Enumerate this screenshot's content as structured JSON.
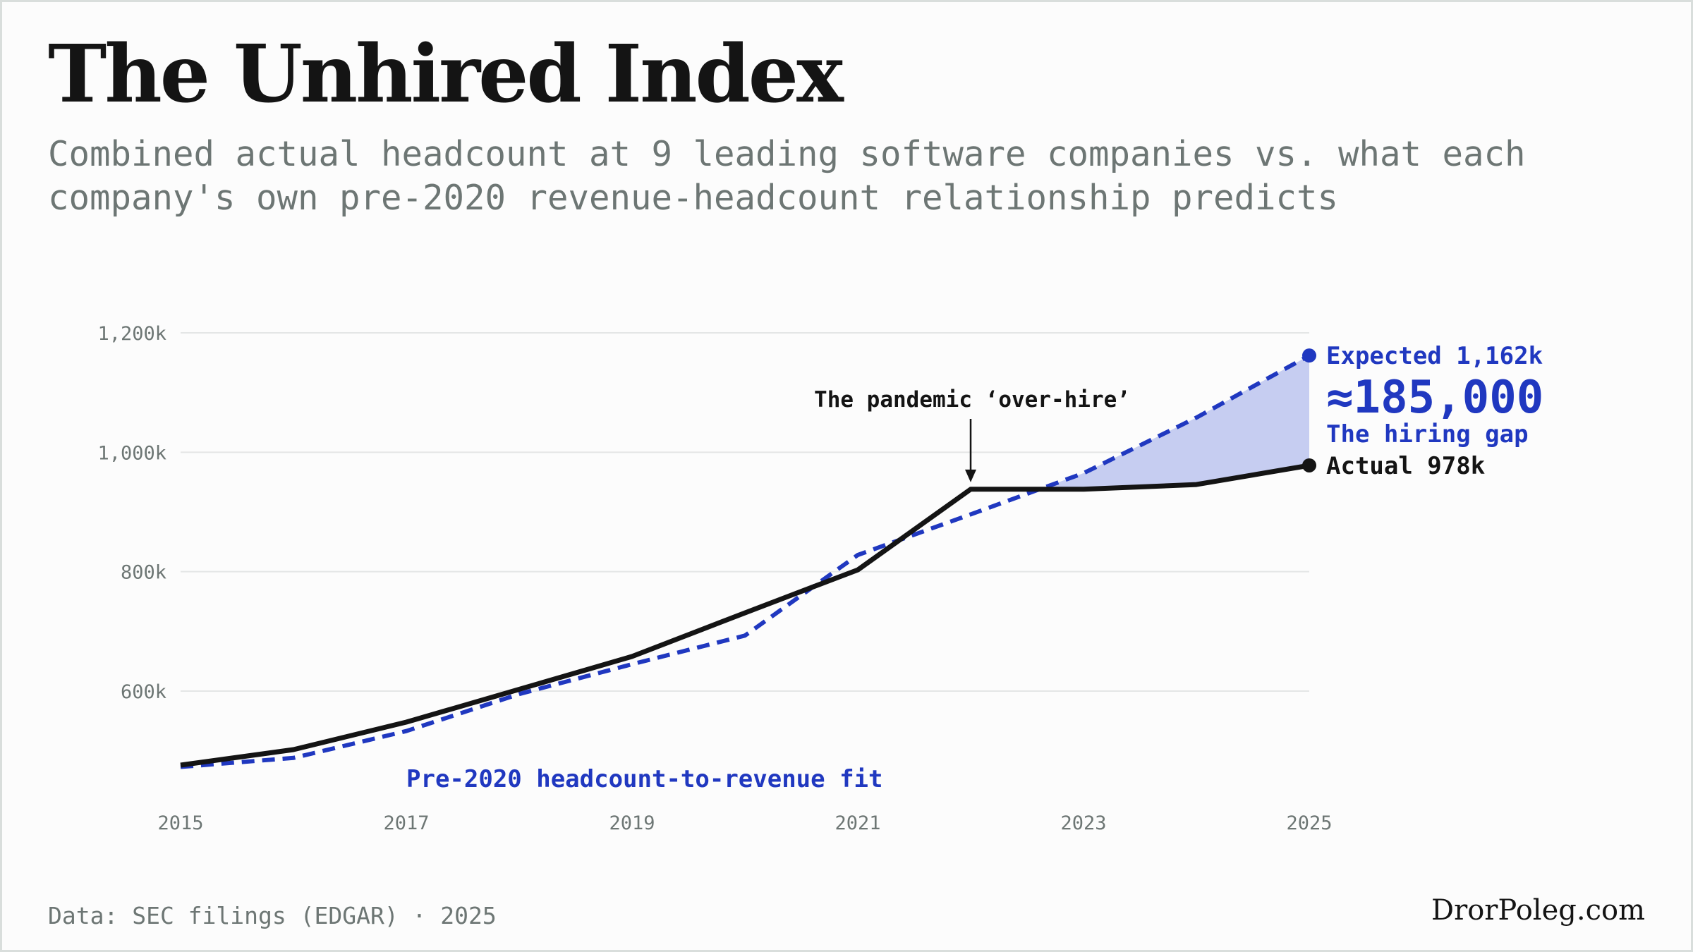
{
  "title": "The Unhired Index",
  "subtitle_lines": [
    "Combined actual headcount at 9 leading software companies vs. what each",
    "company's own pre-2020 revenue-headcount relationship predicts"
  ],
  "footer": {
    "source": "Data: SEC filings (EDGAR) · 2025",
    "brand": "DrorPoleg.com"
  },
  "colors": {
    "actual": "#141414",
    "expected": "#2038c0",
    "gap_fill": "#c6cdf1",
    "grid": "#e4e6e6"
  },
  "chart_data": {
    "type": "line",
    "x": [
      2015,
      2016,
      2017,
      2018,
      2019,
      2020,
      2021,
      2022,
      2023,
      2024,
      2025
    ],
    "xticks": [
      2015,
      2017,
      2019,
      2021,
      2023,
      2025
    ],
    "xtick_labels": [
      "2015",
      "2017",
      "2019",
      "2021",
      "2023",
      "2025"
    ],
    "yticks": [
      600,
      800,
      1000,
      1200
    ],
    "ytick_labels": [
      "600k",
      "800k",
      "1,000k",
      "1,200k"
    ],
    "ylim": [
      450,
      1220
    ],
    "xlim": [
      2015,
      2025
    ],
    "grid": true,
    "series": [
      {
        "key": "actual",
        "style": "solid",
        "values": [
          476,
          502,
          548,
          603,
          658,
          731,
          803,
          938,
          938,
          946,
          978
        ]
      },
      {
        "key": "expected",
        "style": "dashed",
        "values": [
          473,
          488,
          533,
          595,
          645,
          693,
          828,
          896,
          965,
          1058,
          1162
        ]
      }
    ],
    "shaded_gap": {
      "from_x": 2022.6,
      "to_x": 2025,
      "between": [
        "actual",
        "expected"
      ]
    },
    "annotations": {
      "pandemic": {
        "text": "The pandemic ‘over-hire’",
        "x": 2022,
        "y": 938
      },
      "expected_end": "Expected 1,162k",
      "gap_value": "≈185,000",
      "gap_label": "The hiring gap",
      "actual_end": "Actual 978k",
      "fit_label": "Pre-2020 headcount-to-revenue fit"
    }
  }
}
